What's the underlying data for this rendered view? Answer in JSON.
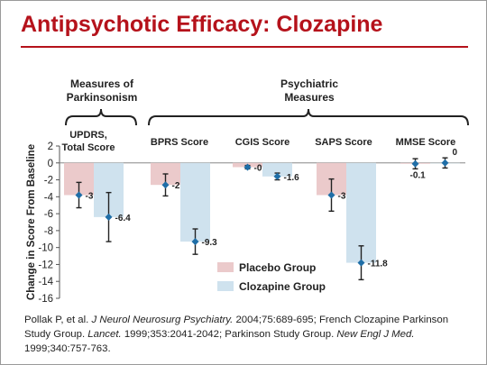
{
  "slide": {
    "title": "Antipsychotic Efficacy: Clozapine",
    "citation": [
      {
        "text": "Pollak P, et al. ",
        "italic": false
      },
      {
        "text": "J Neurol Neurosurg Psychiatry.",
        "italic": true
      },
      {
        "text": " 2004;75:689-695; French Clozapine Parkinson Study Group. ",
        "italic": false
      },
      {
        "text": "Lancet.",
        "italic": true
      },
      {
        "text": " 1999;353:2041-2042; Parkinson Study Group. ",
        "italic": false
      },
      {
        "text": "New Engl J Med.",
        "italic": true
      },
      {
        "text": " 1999;340:757-763.",
        "italic": false
      }
    ]
  },
  "chart_data": {
    "type": "bar",
    "ylabel": "Change in Score From Baseline",
    "ylim": [
      -16,
      2
    ],
    "yticks": [
      2,
      0,
      -2,
      -4,
      -6,
      -8,
      -10,
      -12,
      -14,
      -16
    ],
    "group_headers": [
      {
        "label": "Measures of Parkinsonism",
        "spans": [
          "UPDRS, Total Score"
        ]
      },
      {
        "label": "Psychiatric Measures",
        "spans": [
          "BPRS Score",
          "CGIS Score",
          "SAPS Score",
          "MMSE Score"
        ]
      }
    ],
    "categories": [
      "UPDRS, Total Score",
      "BPRS Score",
      "CGIS Score",
      "SAPS Score",
      "MMSE Score"
    ],
    "series": [
      {
        "name": "Placebo Group",
        "color": "#ebcacb",
        "values": [
          -3.8,
          -2.6,
          -0.5,
          -3.8,
          -0.1
        ],
        "errors": [
          1.5,
          1.3,
          0.2,
          1.9,
          0.6
        ],
        "labels": [
          "-3.8",
          "-2.6",
          "-0.5",
          "-3.8",
          "-0.1"
        ]
      },
      {
        "name": "Clozapine Group",
        "color": "#cfe2ee",
        "values": [
          -6.4,
          -9.3,
          -1.6,
          -11.8,
          0
        ],
        "errors": [
          2.9,
          1.5,
          0.4,
          2.0,
          0.6
        ],
        "labels": [
          "-6.4",
          "-9.3",
          "-1.6",
          "-11.8",
          "0"
        ]
      }
    ],
    "marker_color": "#1f6ea7",
    "legend_position": "inside-lower-middle",
    "grid": false
  }
}
